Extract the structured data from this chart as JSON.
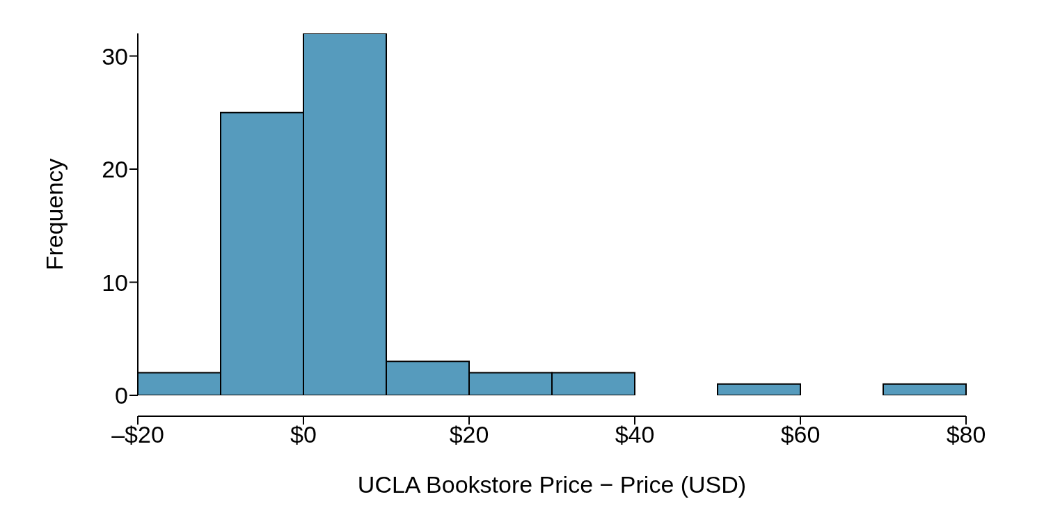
{
  "chart_data": {
    "type": "histogram",
    "xlabel": "UCLA Bookstore Price − Price (USD)",
    "ylabel": "Frequency",
    "bins": [
      -20,
      -10,
      0,
      10,
      20,
      30,
      40,
      50,
      60,
      70,
      80
    ],
    "values": [
      2,
      25,
      32,
      3,
      2,
      2,
      0,
      1,
      0,
      1
    ],
    "color": "#569bbd",
    "xlim": [
      -20,
      80
    ],
    "xticks": [
      {
        "value": -20,
        "label": "–$20"
      },
      {
        "value": 0,
        "label": "$0"
      },
      {
        "value": 20,
        "label": "$20"
      },
      {
        "value": 40,
        "label": "$40"
      },
      {
        "value": 60,
        "label": "$60"
      },
      {
        "value": 80,
        "label": "$80"
      }
    ],
    "ylim": [
      0,
      32
    ],
    "yticks": [
      0,
      10,
      20,
      30
    ]
  }
}
